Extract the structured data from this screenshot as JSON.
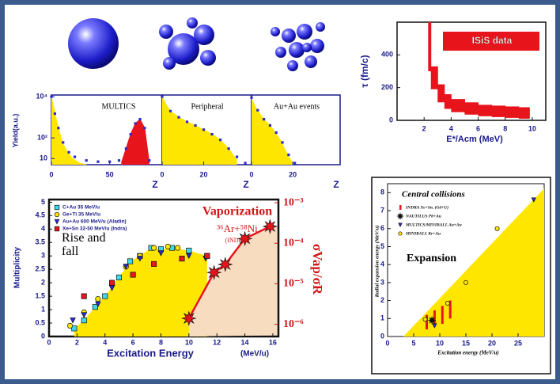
{
  "chart_data": [
    {
      "type": "area",
      "title": "MULTICS",
      "ylabel": "Yield(a.u.)",
      "xlabel": "Z",
      "log_y": true,
      "xlim": [
        0,
        95
      ],
      "xticks": [
        0,
        50
      ],
      "ylim": [
        5,
        12000
      ],
      "yticks": [
        {
          "value": 10,
          "label": "10"
        },
        {
          "value": 100,
          "label": "10²"
        },
        {
          "value": 10000,
          "label": "10⁴"
        }
      ],
      "series": [
        {
          "kind": "area",
          "color": "#ffe600",
          "x": [
            0,
            2,
            4,
            6,
            8,
            10,
            14,
            18,
            24,
            30
          ],
          "values": [
            9000,
            3000,
            900,
            300,
            120,
            50,
            20,
            10,
            6,
            5
          ]
        },
        {
          "kind": "area",
          "color": "#e8141c",
          "x": [
            60,
            64,
            68,
            72,
            76,
            80,
            84
          ],
          "values": [
            6,
            30,
            150,
            500,
            800,
            300,
            6
          ]
        },
        {
          "kind": "points",
          "color": "#2a2ad0",
          "x": [
            0,
            3,
            6,
            10,
            15,
            20,
            30,
            40,
            50,
            58,
            64,
            68,
            72,
            76,
            80,
            84
          ],
          "values": [
            10000,
            1500,
            300,
            60,
            20,
            12,
            8,
            7,
            7,
            8,
            30,
            150,
            500,
            800,
            300,
            8
          ]
        }
      ]
    },
    {
      "type": "area",
      "title": "Peripheral",
      "xlabel": "Z",
      "log_y": true,
      "xlim": [
        0,
        43
      ],
      "xticks": [
        0,
        20
      ],
      "ylim": [
        5,
        12000
      ],
      "series": [
        {
          "kind": "area",
          "color": "#ffe600",
          "x": [
            0,
            2,
            4,
            8,
            12,
            16,
            20,
            24,
            28,
            32,
            36
          ],
          "values": [
            10000,
            4000,
            2000,
            1000,
            600,
            400,
            250,
            150,
            80,
            30,
            8
          ]
        },
        {
          "kind": "points",
          "color": "#2a2ad0",
          "x": [
            0,
            4,
            8,
            12,
            16,
            20,
            24,
            28,
            32,
            36,
            40
          ],
          "values": [
            10000,
            2000,
            1000,
            600,
            400,
            250,
            150,
            80,
            30,
            12,
            6
          ]
        }
      ]
    },
    {
      "type": "area",
      "title": "Au+Au events",
      "xlabel": "Z",
      "log_y": true,
      "xlim": [
        0,
        43
      ],
      "xticks": [
        0,
        20
      ],
      "ylim": [
        5,
        12000
      ],
      "series": [
        {
          "kind": "area",
          "color": "#ffe600",
          "x": [
            0,
            2,
            4,
            6,
            8,
            10,
            12,
            14,
            16,
            18,
            20
          ],
          "values": [
            8000,
            3000,
            1500,
            800,
            500,
            300,
            150,
            80,
            30,
            12,
            6
          ]
        },
        {
          "kind": "points",
          "color": "#2a2ad0",
          "x": [
            0,
            3,
            6,
            9,
            12,
            15,
            18,
            21
          ],
          "values": [
            9000,
            2200,
            800,
            400,
            180,
            60,
            15,
            6
          ]
        }
      ]
    },
    {
      "type": "band",
      "ylabel": "τ (fm/c)",
      "xlabel": "E*/Acm (MeV)",
      "xlim": [
        0,
        11
      ],
      "xticks": [
        2,
        4,
        6,
        8,
        10
      ],
      "ylim": [
        0,
        600
      ],
      "yticks": [
        0,
        200,
        400
      ],
      "band": {
        "name": "ISiS data",
        "color": "#e8141c",
        "x": [
          2.3,
          2.5,
          3,
          3.5,
          4,
          5,
          6,
          7,
          8,
          9,
          9.5
        ],
        "low": [
          300,
          190,
          110,
          70,
          50,
          35,
          25,
          20,
          15,
          10,
          10
        ],
        "high": [
          600,
          330,
          220,
          160,
          130,
          110,
          95,
          90,
          85,
          80,
          80
        ]
      }
    },
    {
      "type": "scatter",
      "title": "Vaporization",
      "reaction": "³⁶Ar+⁵⁸Ni",
      "source": "(INDRA)",
      "annotation": "Rise and fall",
      "xlabel": "Excitation Energy",
      "xunit": "(MeV/u)",
      "ylabel": "Multiplicity",
      "y2label": "σVap/σR",
      "xlim": [
        0,
        16.4
      ],
      "xticks": [
        0,
        2,
        4,
        6,
        8,
        10,
        12,
        14,
        16
      ],
      "ylim": [
        0,
        5.1
      ],
      "yticks": [
        0,
        0.5,
        1,
        1.5,
        2,
        2.5,
        3,
        3.5,
        4,
        4.5,
        5
      ],
      "log_y2": true,
      "y2lim": [
        5e-07,
        0.0012
      ],
      "y2ticks": [
        {
          "value": 1e-06,
          "label": "10⁻⁶"
        },
        {
          "value": 1e-05,
          "label": "10⁻⁵"
        },
        {
          "value": 0.0001,
          "label": "10⁻⁴"
        },
        {
          "value": 0.001,
          "label": "10⁻³"
        }
      ],
      "series": [
        {
          "name": "C+Au 35 MeV/u",
          "marker": "square",
          "color": "#40d8e8",
          "x": [
            1.8,
            2.5,
            3.3,
            4,
            5,
            5.8,
            6.5,
            7.3,
            8,
            8.8,
            10,
            11.3
          ],
          "values": [
            0.3,
            0.6,
            1.1,
            1.5,
            2.2,
            2.8,
            3.0,
            3.3,
            3.25,
            3.3,
            3.2,
            3.0
          ]
        },
        {
          "name": "Ge+Ti 35 MeV/u",
          "marker": "circle",
          "color": "#ffe600",
          "x": [
            1.5,
            2.5,
            3.5,
            4.5,
            5.5,
            6.5,
            7.5,
            8.5,
            9.2
          ],
          "values": [
            0.4,
            0.9,
            1.4,
            2.0,
            2.6,
            3.0,
            3.3,
            3.35,
            3.3
          ]
        },
        {
          "name": "Au+Au 600 MeV/u (Aladin)",
          "marker": "triangle",
          "color": "#2a2ad0",
          "x": [
            1.7,
            2.5,
            3.5,
            4.5,
            5.5,
            6.5,
            8,
            10,
            11.2
          ],
          "values": [
            0.6,
            0.8,
            1.2,
            1.8,
            2.6,
            2.9,
            3.1,
            3.0,
            2.9
          ]
        },
        {
          "name": "Xe+Sn 32-50 MeV/u (Indra)",
          "marker": "square",
          "color": "#e8141c",
          "x": [
            2.5,
            4.5,
            6,
            7.5,
            9.5,
            11.3
          ],
          "values": [
            1.5,
            2.0,
            2.3,
            2.7,
            2.9,
            3.0
          ]
        },
        {
          "marker": "star",
          "color": "#e8141c",
          "axis": "y2",
          "x": [
            10,
            11.8,
            12.6,
            14,
            15.8
          ],
          "values": [
            1.4e-06,
            1.9e-05,
            3e-05,
            0.00013,
            0.00026
          ]
        }
      ]
    },
    {
      "type": "scatter",
      "title": "Central collisions",
      "annotation": "Expansion",
      "xlabel": "Excitation energy (MeV/u)",
      "ylabel": "Radial expansion energy (MeV/u)",
      "xlim": [
        0,
        30
      ],
      "xticks": [
        0,
        5,
        10,
        15,
        20,
        25
      ],
      "ylim": [
        0,
        8.5
      ],
      "yticks": [
        0,
        1,
        2,
        3,
        4,
        5,
        6,
        7,
        8
      ],
      "series": [
        {
          "name": "INDRA Xe+Sn, (Gd+U)",
          "marker": "bar",
          "color": "#e8141c",
          "x": [
            7.5,
            9,
            10.5,
            12
          ],
          "values": [
            0.8,
            1.0,
            1.2,
            1.5
          ],
          "errors": [
            0.4,
            0.45,
            0.5,
            0.5
          ]
        },
        {
          "name": "NAUTILUS Pb+Au",
          "marker": "star",
          "color": "#111111",
          "x": [
            8.5
          ],
          "values": [
            0.9
          ]
        },
        {
          "name": "MULTICS/MINIBALL Au+Au",
          "marker": "triangle",
          "color": "#2a2ad0",
          "x": [
            9,
            28
          ],
          "values": [
            0.6,
            7.6
          ]
        },
        {
          "name": "MINIBALL Kr+Au",
          "marker": "circle",
          "color": "#ffe600",
          "x": [
            7.2,
            11.5,
            15,
            21
          ],
          "values": [
            0.95,
            1.85,
            3.0,
            6.0
          ]
        }
      ]
    }
  ]
}
